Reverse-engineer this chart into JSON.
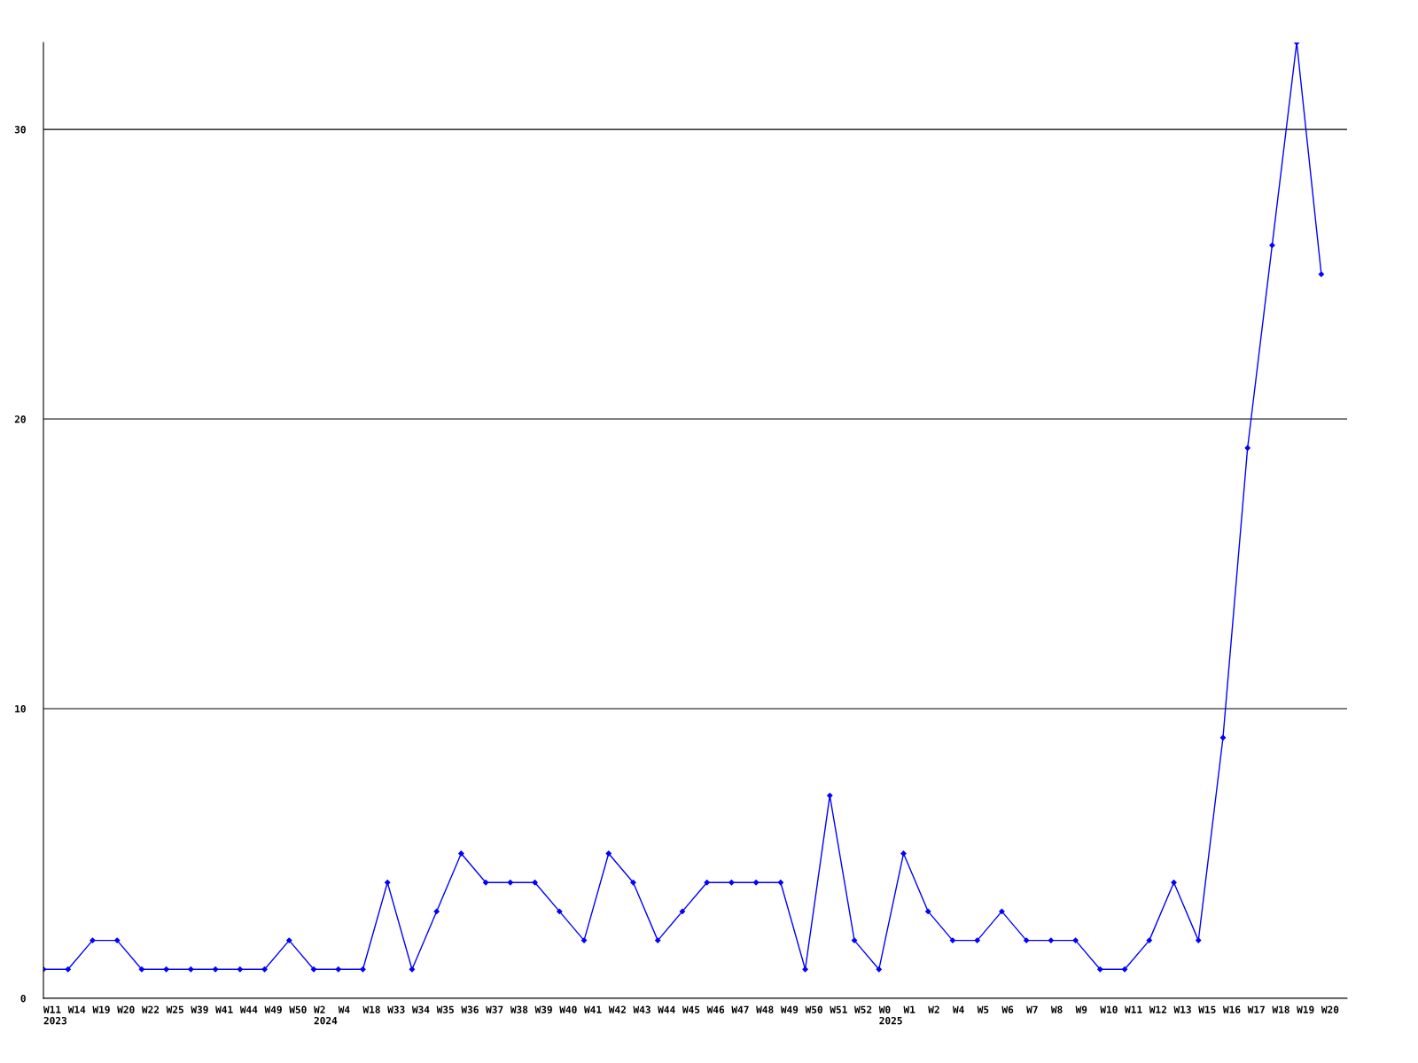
{
  "chart_data": {
    "type": "line",
    "categories": [
      "W11\n2023",
      "W14",
      "W19",
      "W20",
      "W22",
      "W25",
      "W39",
      "W41",
      "W44",
      "W49",
      "W50",
      "W2\n2024",
      "W4",
      "W18",
      "W33",
      "W34",
      "W35",
      "W36",
      "W37",
      "W38",
      "W39",
      "W40",
      "W41",
      "W42",
      "W43",
      "W44",
      "W45",
      "W46",
      "W47",
      "W48",
      "W49",
      "W50",
      "W51",
      "W52",
      "W0\n2025",
      "W1",
      "W2",
      "W4",
      "W5",
      "W6",
      "W7",
      "W8",
      "W9",
      "W10",
      "W11",
      "W12",
      "W13",
      "W15",
      "W16",
      "W17",
      "W18",
      "W19",
      "W20"
    ],
    "series": [
      {
        "color": "#0000ff",
        "values": [
          1,
          1,
          2,
          2,
          1,
          1,
          1,
          1,
          1,
          1,
          2,
          1,
          1,
          1,
          4,
          1,
          3,
          5,
          4,
          4,
          4,
          3,
          2,
          5,
          4,
          2,
          3,
          4,
          4,
          4,
          4,
          1,
          7,
          2,
          1,
          5,
          3,
          2,
          2,
          3,
          2,
          2,
          2,
          1,
          1,
          2,
          4,
          2,
          9,
          19,
          26,
          33,
          25
        ]
      }
    ],
    "ylim": [
      0,
      33
    ],
    "yticks": [
      0,
      10,
      20,
      30
    ],
    "grid": "y",
    "marker": "diamond",
    "line_style": "solid",
    "legend": false
  }
}
